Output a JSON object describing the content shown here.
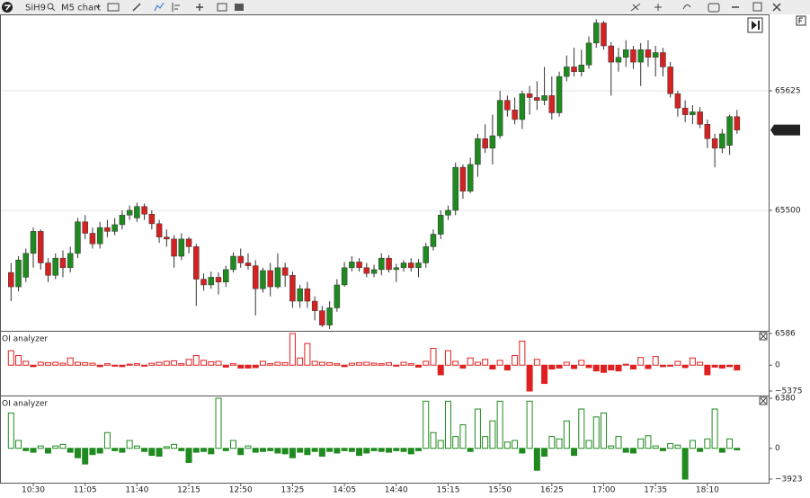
{
  "toolbar": {
    "symbol": "SiH9",
    "timeframe": "M5 chart"
  },
  "chart_data": [
    {
      "type": "candlestick",
      "up_color": "#1f8a1f",
      "down_color": "#d42222",
      "grid": true,
      "ylim": [
        65374,
        65704
      ],
      "yticks": [
        65500,
        65625
      ],
      "last_price": 65584,
      "open": [
        65435,
        65420,
        65430,
        65455,
        65478,
        65445,
        65432,
        65450,
        65440,
        65455,
        65488,
        65476,
        65465,
        65482,
        65478,
        65485,
        65495,
        65492,
        65504,
        65496,
        65486,
        65472,
        65470,
        65452,
        65470,
        65462,
        65428,
        65422,
        65430,
        65425,
        65438,
        65452,
        65445,
        65442,
        65418,
        65437,
        65420,
        65440,
        65432,
        65405,
        65418,
        65405,
        65395,
        65380,
        65398,
        65422,
        65440,
        65446,
        65440,
        65434,
        65438,
        65450,
        65438,
        65440,
        65445,
        65440,
        65445,
        65462,
        65475,
        65495,
        65500,
        65545,
        65520,
        65548,
        65575,
        65565,
        65578,
        65615,
        65605,
        65595,
        65622,
        65618,
        65615,
        65620,
        65602,
        65640,
        65650,
        65645,
        65652,
        65675,
        65696,
        65672,
        65655,
        65660,
        65668,
        65655,
        65668,
        65660,
        65665,
        65650,
        65622,
        65607,
        65600,
        65603,
        65590,
        65575,
        65565,
        65568,
        65598
      ],
      "high": [
        65445,
        65452,
        65460,
        65482,
        65480,
        65450,
        65455,
        65458,
        65462,
        65492,
        65495,
        65482,
        65488,
        65490,
        65492,
        65500,
        65505,
        65508,
        65507,
        65500,
        65490,
        65480,
        65474,
        65476,
        65472,
        65465,
        65434,
        65436,
        65435,
        65442,
        65456,
        65460,
        65455,
        65448,
        65440,
        65445,
        65455,
        65445,
        65436,
        65422,
        65425,
        65410,
        65400,
        65405,
        65428,
        65446,
        65452,
        65450,
        65445,
        65443,
        65455,
        65453,
        65444,
        65448,
        65450,
        65449,
        65466,
        65480,
        65500,
        65505,
        65550,
        65548,
        65555,
        65580,
        65590,
        65600,
        65625,
        65620,
        65618,
        65625,
        65630,
        65635,
        65650,
        65640,
        65645,
        65662,
        65670,
        65668,
        65682,
        65700,
        65698,
        65676,
        65670,
        65678,
        65672,
        65675,
        65678,
        65672,
        65670,
        65655,
        65625,
        65615,
        65610,
        65608,
        65595,
        65580,
        65585,
        65600,
        65605
      ],
      "low": [
        65405,
        65415,
        65425,
        65440,
        65438,
        65425,
        65428,
        65430,
        65435,
        65450,
        65470,
        65460,
        65460,
        65472,
        65474,
        65480,
        65490,
        65488,
        65490,
        65480,
        65466,
        65462,
        65440,
        65448,
        65455,
        65400,
        65416,
        65418,
        65412,
        65420,
        65435,
        65440,
        65438,
        65390,
        65414,
        65410,
        65418,
        65420,
        65398,
        65398,
        65398,
        65385,
        65378,
        65376,
        65394,
        65420,
        65436,
        65436,
        65430,
        65430,
        65432,
        65435,
        65425,
        65436,
        65436,
        65430,
        65440,
        65458,
        65470,
        65490,
        65495,
        65512,
        65518,
        65535,
        65560,
        65548,
        65575,
        65598,
        65590,
        65585,
        65600,
        65605,
        65610,
        65595,
        65598,
        65635,
        65640,
        65640,
        65648,
        65670,
        65668,
        65620,
        65645,
        65650,
        65648,
        65630,
        65650,
        65640,
        65640,
        65618,
        65598,
        65592,
        65590,
        65586,
        65565,
        65545,
        65560,
        65558,
        65580
      ],
      "close": [
        65420,
        65448,
        65455,
        65478,
        65445,
        65432,
        65450,
        65440,
        65455,
        65488,
        65476,
        65465,
        65482,
        65478,
        65485,
        65495,
        65500,
        65504,
        65496,
        65486,
        65472,
        65470,
        65452,
        65470,
        65462,
        65428,
        65422,
        65430,
        65425,
        65438,
        65452,
        65445,
        65442,
        65418,
        65437,
        65420,
        65440,
        65432,
        65405,
        65418,
        65405,
        65395,
        65380,
        65398,
        65422,
        65440,
        65446,
        65440,
        65434,
        65438,
        65450,
        65438,
        65440,
        65445,
        65440,
        65445,
        65462,
        65475,
        65495,
        65500,
        65545,
        65520,
        65548,
        65575,
        65565,
        65578,
        65615,
        65605,
        65595,
        65622,
        65618,
        65615,
        65620,
        65602,
        65640,
        65650,
        65645,
        65652,
        65675,
        65696,
        65672,
        65655,
        65660,
        65668,
        65655,
        65668,
        65660,
        65665,
        65650,
        65622,
        65607,
        65600,
        65603,
        65590,
        65575,
        65565,
        65580,
        65598,
        65584
      ]
    },
    {
      "type": "bar",
      "title": "OI analyzer",
      "color": "#e02020",
      "ylim": [
        -6310,
        6960
      ],
      "yticks": [
        {
          "value": -5375,
          "label": "−5375"
        },
        0,
        6586
      ],
      "values": [
        3000,
        2000,
        800,
        -300,
        600,
        500,
        600,
        400,
        1500,
        600,
        500,
        400,
        -300,
        300,
        -200,
        -300,
        200,
        300,
        -200,
        400,
        600,
        800,
        900,
        300,
        1200,
        2000,
        1000,
        700,
        800,
        -400,
        300,
        -600,
        -600,
        -500,
        800,
        300,
        600,
        500,
        6586,
        1500,
        4500,
        800,
        600,
        500,
        300,
        -300,
        400,
        500,
        600,
        400,
        300,
        500,
        -200,
        600,
        300,
        -400,
        800,
        3500,
        -2000,
        3000,
        800,
        -600,
        1500,
        600,
        1200,
        -800,
        1000,
        -1000,
        2000,
        5000,
        -5375,
        1200,
        -3800,
        -800,
        -600,
        600,
        -700,
        1000,
        -500,
        -1200,
        -1500,
        -1000,
        -1200,
        200,
        -800,
        1600,
        -700,
        1800,
        -300,
        -200,
        800,
        -500,
        1500,
        600,
        -2000,
        -400,
        -600,
        -300,
        -1000
      ]
    },
    {
      "type": "bar",
      "title": "OI analyzer",
      "color": "#1f8a1f",
      "ylim": [
        -4496,
        6609
      ],
      "yticks": [
        {
          "value": -3923,
          "label": "−3923"
        },
        0,
        6380
      ],
      "categories": [
        null,
        null,
        null,
        "10:30",
        null,
        null,
        null,
        null,
        null,
        null,
        "11:05",
        null,
        null,
        null,
        null,
        null,
        null,
        "11:40",
        null,
        null,
        null,
        null,
        null,
        null,
        "12:15",
        null,
        null,
        null,
        null,
        null,
        null,
        "12:50",
        null,
        null,
        null,
        null,
        null,
        null,
        "13:25",
        null,
        null,
        null,
        null,
        null,
        null,
        "14:05",
        null,
        null,
        null,
        null,
        null,
        null,
        "14:40",
        null,
        null,
        null,
        null,
        null,
        null,
        "15:15",
        null,
        null,
        null,
        null,
        null,
        null,
        "15:50",
        null,
        null,
        null,
        null,
        null,
        null,
        "16:25",
        null,
        null,
        null,
        null,
        null,
        null,
        "17:00",
        null,
        null,
        null,
        null,
        null,
        null,
        "17:35",
        null,
        null,
        null,
        null,
        null,
        null,
        "18:10",
        null,
        null,
        null,
        null
      ],
      "values": [
        4500,
        1000,
        -300,
        -500,
        300,
        -600,
        300,
        500,
        -500,
        -1200,
        -2000,
        -800,
        -600,
        2000,
        -300,
        -500,
        1000,
        300,
        -400,
        -900,
        -1000,
        200,
        500,
        -300,
        -1800,
        -500,
        -400,
        -700,
        6380,
        -300,
        1000,
        -800,
        300,
        -500,
        -400,
        -300,
        -600,
        -700,
        -1200,
        -500,
        -800,
        -400,
        -1000,
        -400,
        -600,
        -300,
        -400,
        -900,
        -600,
        -300,
        -400,
        -500,
        -300,
        -400,
        -700,
        -300,
        6000,
        2000,
        1000,
        6000,
        1500,
        3000,
        -400,
        5000,
        1500,
        3500,
        6000,
        800,
        1000,
        -600,
        6000,
        -2800,
        -1000,
        1500,
        1200,
        3500,
        -900,
        5000,
        1000,
        4000,
        4500,
        300,
        1500,
        -500,
        -600,
        1200,
        1600,
        300,
        -300,
        600,
        400,
        -3923,
        1000,
        -400,
        1200,
        5000,
        -500,
        1200,
        -200
      ]
    }
  ]
}
